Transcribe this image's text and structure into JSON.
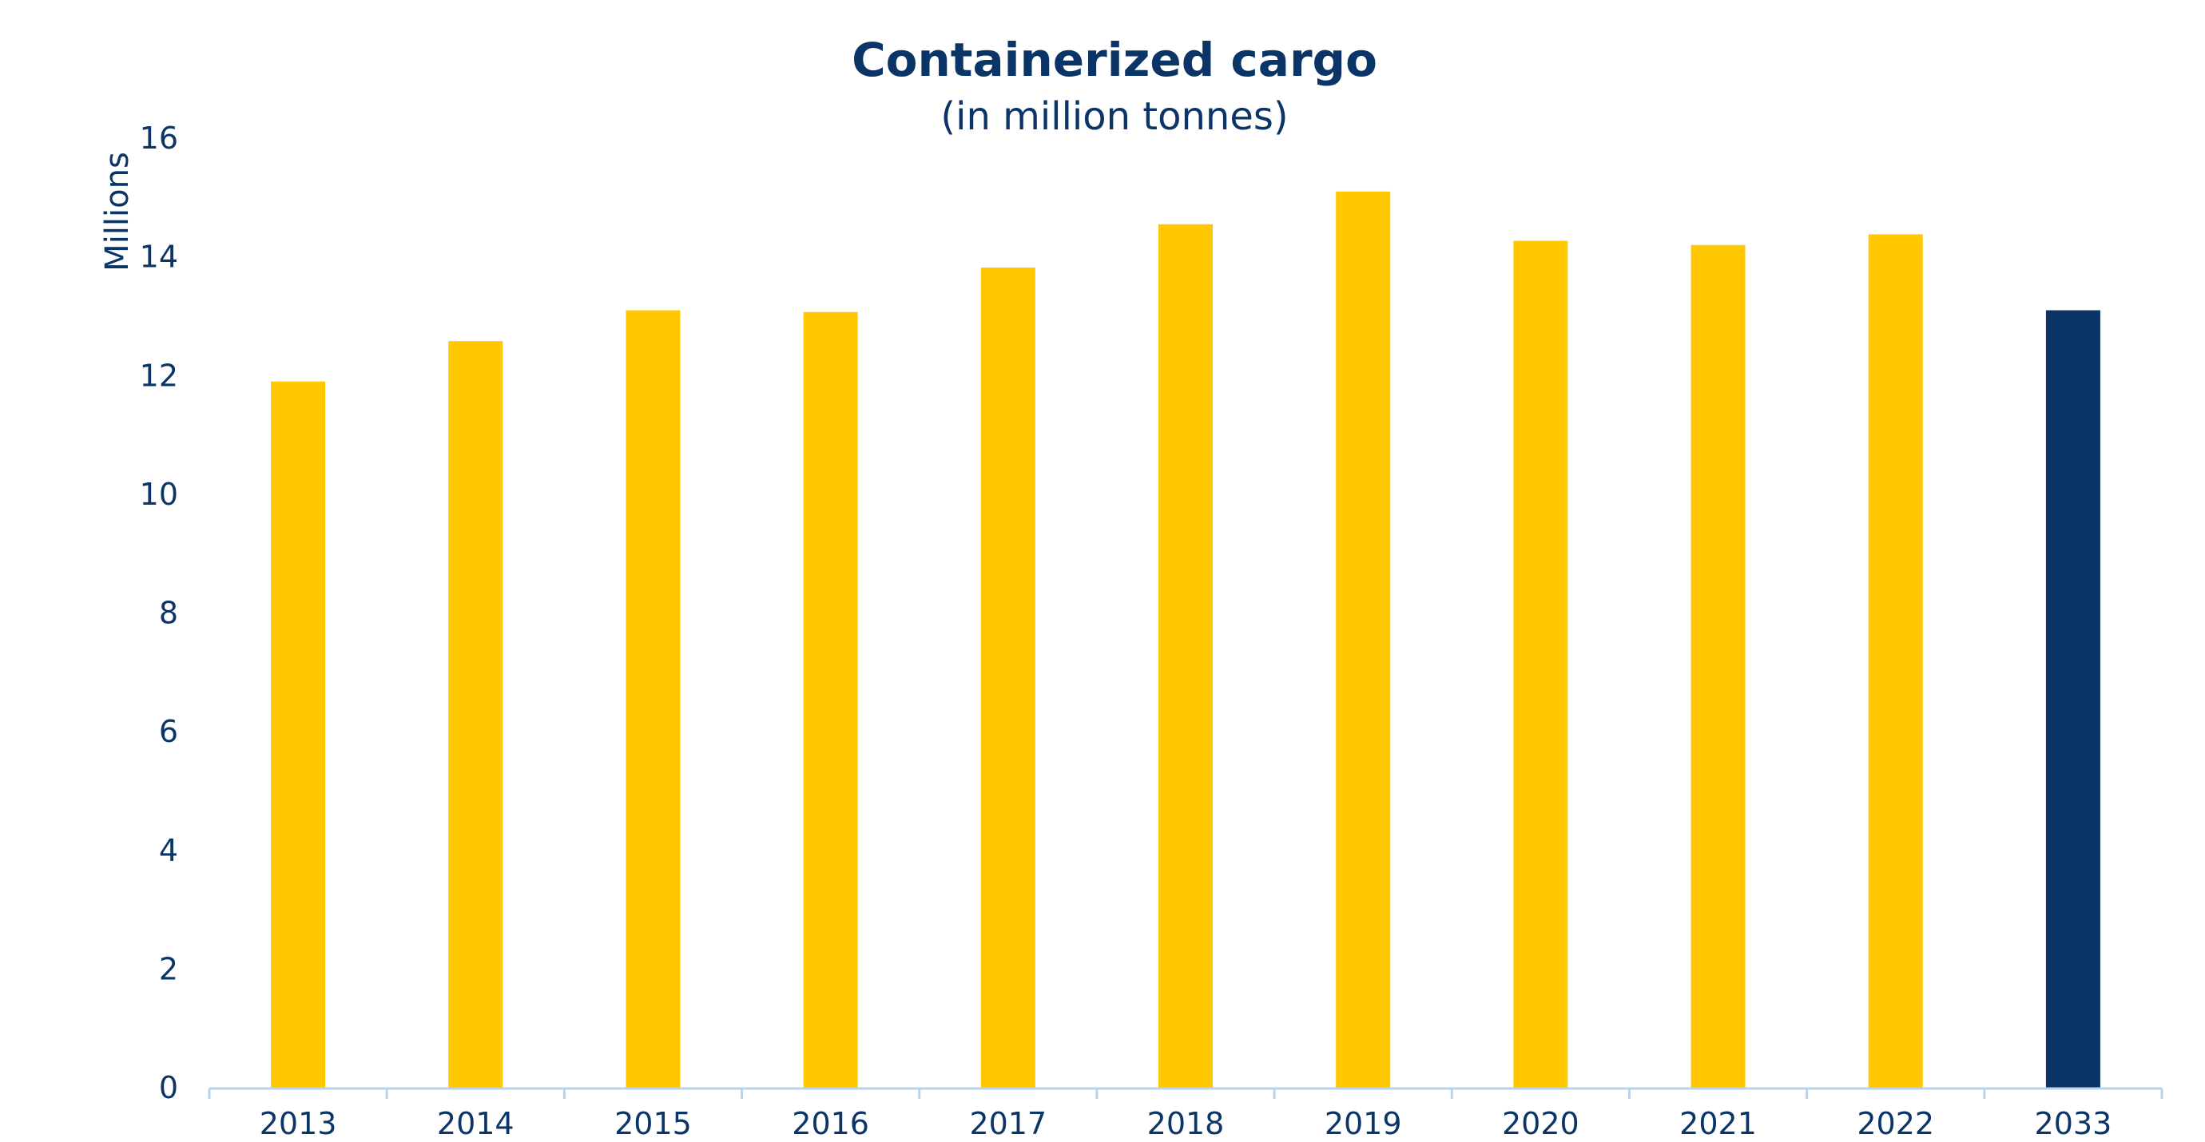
{
  "colors": {
    "text": "#0b3467",
    "bar": "#ffc800",
    "highlight": "#0b3467",
    "axis": "#b9d3ea"
  },
  "chart_data": {
    "type": "bar",
    "title": "Containerized cargo",
    "subtitle": "(in million tonnes)",
    "ylabel": "Millions",
    "xlabel": "",
    "ylim": [
      0,
      16
    ],
    "yticks": [
      0,
      2,
      4,
      6,
      8,
      10,
      12,
      14,
      16
    ],
    "grid": false,
    "categories": [
      "2013",
      "2014",
      "2015",
      "2016",
      "2017",
      "2018",
      "2019",
      "2020",
      "2021",
      "2022",
      "2033"
    ],
    "values": [
      11.9,
      12.58,
      13.1,
      13.07,
      13.82,
      14.55,
      15.1,
      14.27,
      14.2,
      14.38,
      13.1
    ],
    "highlight_category": "2033"
  }
}
